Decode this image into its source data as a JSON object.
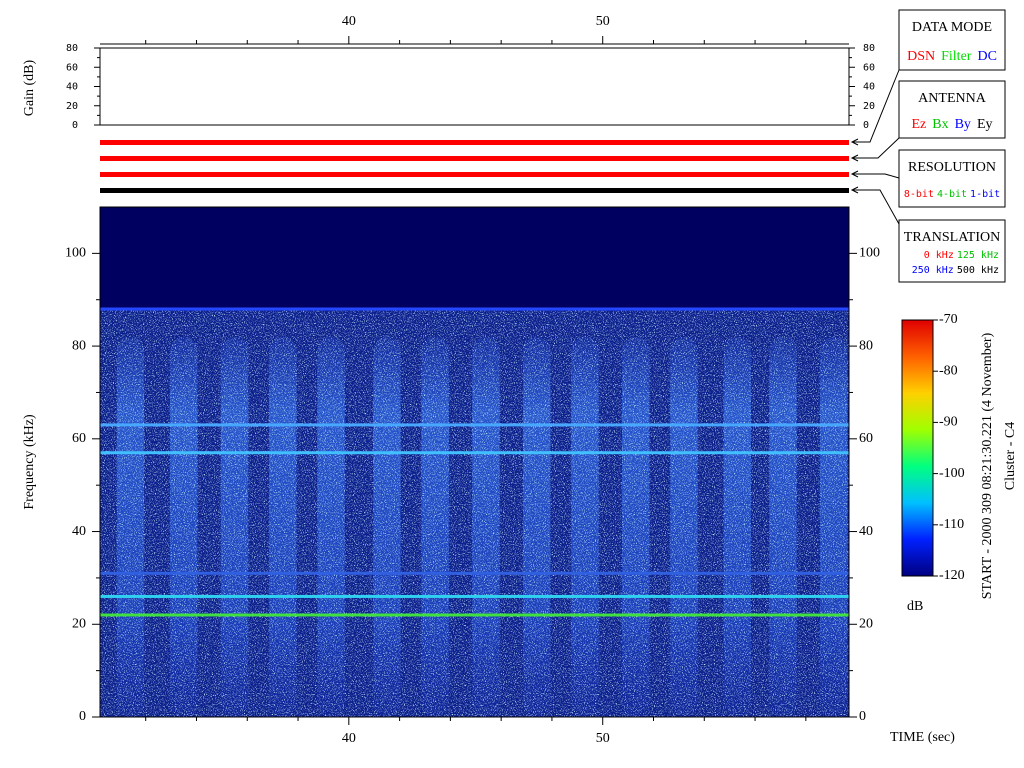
{
  "chart_data": {
    "type": "spectrogram",
    "xlabel": "TIME (sec)",
    "ylabel": "Frequency (kHz)",
    "xlim": [
      30.2,
      59.7
    ],
    "xticks": [
      40,
      50
    ],
    "x_minor_ticks": [
      32,
      34,
      36,
      38,
      42,
      44,
      46,
      48,
      52,
      54,
      56,
      58
    ],
    "ylim": [
      0,
      110
    ],
    "yticks": [
      0,
      20,
      40,
      60,
      80,
      100
    ],
    "y_minor_ticks": [
      10,
      30,
      50,
      70,
      90
    ],
    "gain_panel": {
      "ylabel": "Gain (dB)",
      "ylim": [
        0,
        80
      ],
      "yticks": [
        0,
        20,
        40,
        60,
        80
      ],
      "y_minor_ticks": [
        10,
        30,
        50,
        70
      ]
    },
    "mode_bars": [
      "#ff0000",
      "#ff0000",
      "#ff0000",
      "#000000"
    ],
    "background_top": 88,
    "burst_top": 82,
    "burst_times": [
      31.4,
      33.5,
      35.5,
      37.4,
      39.3,
      41.5,
      43.4,
      45.4,
      47.4,
      49.3,
      51.3,
      53.2,
      55.3,
      57.1,
      59.1
    ],
    "emission_lines": [
      {
        "frequency": 88,
        "color": "#2448ff"
      },
      {
        "frequency": 63,
        "color": "#48a8ff"
      },
      {
        "frequency": 57,
        "color": "#40c0ff"
      },
      {
        "frequency": 31,
        "color": "#3060e0"
      },
      {
        "frequency": 26,
        "color": "#30d0f0"
      },
      {
        "frequency": 22,
        "color": "#40e040"
      }
    ],
    "colorbar": {
      "label": "dB",
      "lim": [
        -120,
        -70
      ],
      "ticks": [
        -120,
        -110,
        -100,
        -90,
        -80,
        -70
      ],
      "colors": [
        "#000080",
        "#0020ff",
        "#00c0ff",
        "#00ff80",
        "#a0ff00",
        "#ffd000",
        "#ff6000",
        "#e00000"
      ]
    },
    "legend_boxes": [
      {
        "title": "DATA MODE",
        "rows": [
          [
            {
              "text": "DSN",
              "color": "#ff0000"
            },
            {
              "text": "Filter",
              "color": "#00e000"
            },
            {
              "text": "DC",
              "color": "#0000ff"
            }
          ]
        ]
      },
      {
        "title": "ANTENNA",
        "rows": [
          [
            {
              "text": "Ez",
              "color": "#ff0000"
            },
            {
              "text": "Bx",
              "color": "#00c000"
            },
            {
              "text": "By",
              "color": "#0000ff"
            },
            {
              "text": "Ey",
              "color": "#000000"
            }
          ]
        ]
      },
      {
        "title": "RESOLUTION",
        "rows": [
          [
            {
              "text": "8-bit",
              "color": "#ff0000"
            },
            {
              "text": "4-bit",
              "color": "#00c000"
            },
            {
              "text": "1-bit",
              "color": "#0000ff"
            }
          ]
        ]
      },
      {
        "title": "TRANSLATION",
        "rows": [
          [
            {
              "text": "0 kHz",
              "color": "#ff0000"
            },
            {
              "text": "125 kHz",
              "color": "#00c000"
            }
          ],
          [
            {
              "text": "250 kHz",
              "color": "#0000ff"
            },
            {
              "text": "500 kHz",
              "color": "#000000"
            }
          ]
        ]
      }
    ],
    "footer": "START - 2000 309 08:21:30.221 (4 November)",
    "spacecraft": "Cluster - C4"
  }
}
